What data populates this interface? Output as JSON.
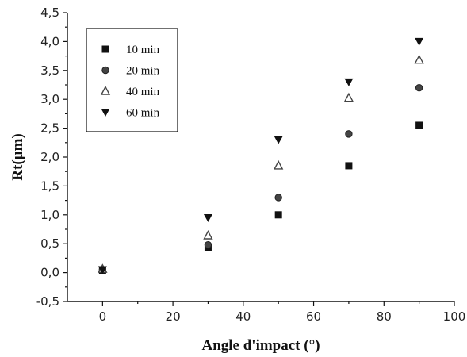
{
  "chart_data": {
    "type": "scatter",
    "title": "",
    "xlabel": "Angle d'impact (°)",
    "ylabel": "Rt(µm)",
    "xlim": [
      -10,
      100
    ],
    "ylim": [
      -0.5,
      4.5
    ],
    "xticks": [
      0,
      20,
      40,
      60,
      80,
      100
    ],
    "xtick_labels": [
      "0",
      "20",
      "40",
      "60",
      "80",
      "100"
    ],
    "yticks": [
      -0.5,
      0.0,
      0.5,
      1.0,
      1.5,
      2.0,
      2.5,
      3.0,
      3.5,
      4.0,
      4.5
    ],
    "ytick_labels": [
      "-0,5",
      "0,0",
      "0,5",
      "1,0",
      "1,5",
      "2,0",
      "2,5",
      "3,0",
      "3,5",
      "4,0",
      "4,5"
    ],
    "grid": false,
    "legend_position": "top-left",
    "series": [
      {
        "name": "10 min",
        "marker": "square",
        "color": "#111111",
        "x": [
          0,
          30,
          50,
          70,
          90
        ],
        "y": [
          0.04,
          0.43,
          1.0,
          1.85,
          2.55
        ]
      },
      {
        "name": "20 min",
        "marker": "circle",
        "color": "#444444",
        "x": [
          0,
          30,
          50,
          70,
          90
        ],
        "y": [
          0.05,
          0.48,
          1.3,
          2.4,
          3.2
        ]
      },
      {
        "name": "40 min",
        "marker": "triangle-up",
        "color": "#444444",
        "x": [
          0,
          30,
          50,
          70,
          90
        ],
        "y": [
          0.06,
          0.64,
          1.85,
          3.02,
          3.68
        ]
      },
      {
        "name": "60 min",
        "marker": "triangle-down",
        "color": "#111111",
        "x": [
          0,
          30,
          50,
          70,
          90
        ],
        "y": [
          0.05,
          0.95,
          2.3,
          3.3,
          4.0
        ]
      }
    ]
  }
}
